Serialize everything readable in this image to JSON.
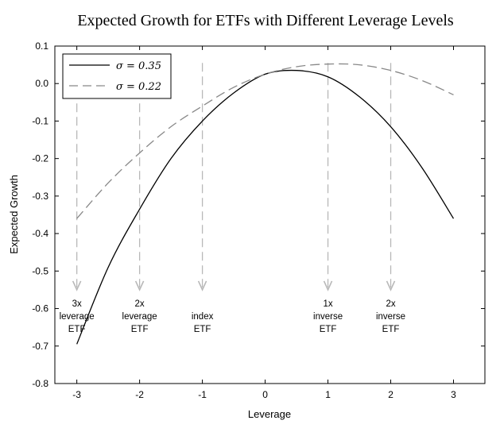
{
  "chart_data": {
    "type": "line",
    "title": "Expected Growth for ETFs with Different Leverage Levels",
    "xlabel": "Leverage",
    "ylabel": "Expected Growth",
    "xlim": [
      -3.35,
      3.5
    ],
    "ylim": [
      -0.8,
      0.1
    ],
    "xticks": [
      -3,
      -2,
      -1,
      0,
      1,
      2,
      3
    ],
    "xtick_labels": [
      "-3",
      "-2",
      "-1",
      "0",
      "1",
      "2",
      "3"
    ],
    "yticks": [
      0.1,
      0.0,
      -0.1,
      -0.2,
      -0.3,
      -0.4,
      -0.5,
      -0.6,
      -0.7,
      -0.8
    ],
    "ytick_labels": [
      "0.1",
      "0.0",
      "-0.1",
      "-0.2",
      "-0.3",
      "-0.4",
      "-0.5",
      "-0.6",
      "-0.7",
      "-0.8"
    ],
    "grid": false,
    "legend_position": "top-left",
    "series": [
      {
        "name": "σ = 0.35",
        "style": "solid",
        "color": "#000000",
        "x": [
          -3,
          -2.5,
          -2,
          -1.5,
          -1,
          -0.5,
          0,
          0.5,
          1,
          1.5,
          2,
          2.5,
          3
        ],
        "y": [
          -0.695,
          -0.49,
          -0.335,
          -0.2,
          -0.1,
          -0.025,
          0.025,
          0.035,
          0.018,
          -0.035,
          -0.115,
          -0.225,
          -0.36
        ]
      },
      {
        "name": "σ = 0.22",
        "style": "dashed",
        "color": "#888888",
        "x": [
          -3,
          -2.5,
          -2,
          -1.5,
          -1,
          -0.5,
          0,
          0.5,
          1,
          1.5,
          2,
          2.5,
          3
        ],
        "y": [
          -0.36,
          -0.265,
          -0.185,
          -0.115,
          -0.06,
          -0.01,
          0.025,
          0.045,
          0.052,
          0.05,
          0.035,
          0.008,
          -0.03
        ]
      }
    ],
    "annotations": [
      {
        "x": 2,
        "lines": [
          "2x",
          "inverse",
          "ETF"
        ]
      },
      {
        "x": 1,
        "lines": [
          "1x",
          "inverse",
          "ETF"
        ]
      },
      {
        "x": -1,
        "lines": [
          "index",
          "ETF"
        ]
      },
      {
        "x": -2,
        "lines": [
          "2x",
          "leverage",
          "ETF"
        ]
      },
      {
        "x": -3,
        "lines": [
          "3x",
          "leverage",
          "ETF"
        ]
      }
    ],
    "annotation_arrow_color": "#b8b8b8"
  }
}
